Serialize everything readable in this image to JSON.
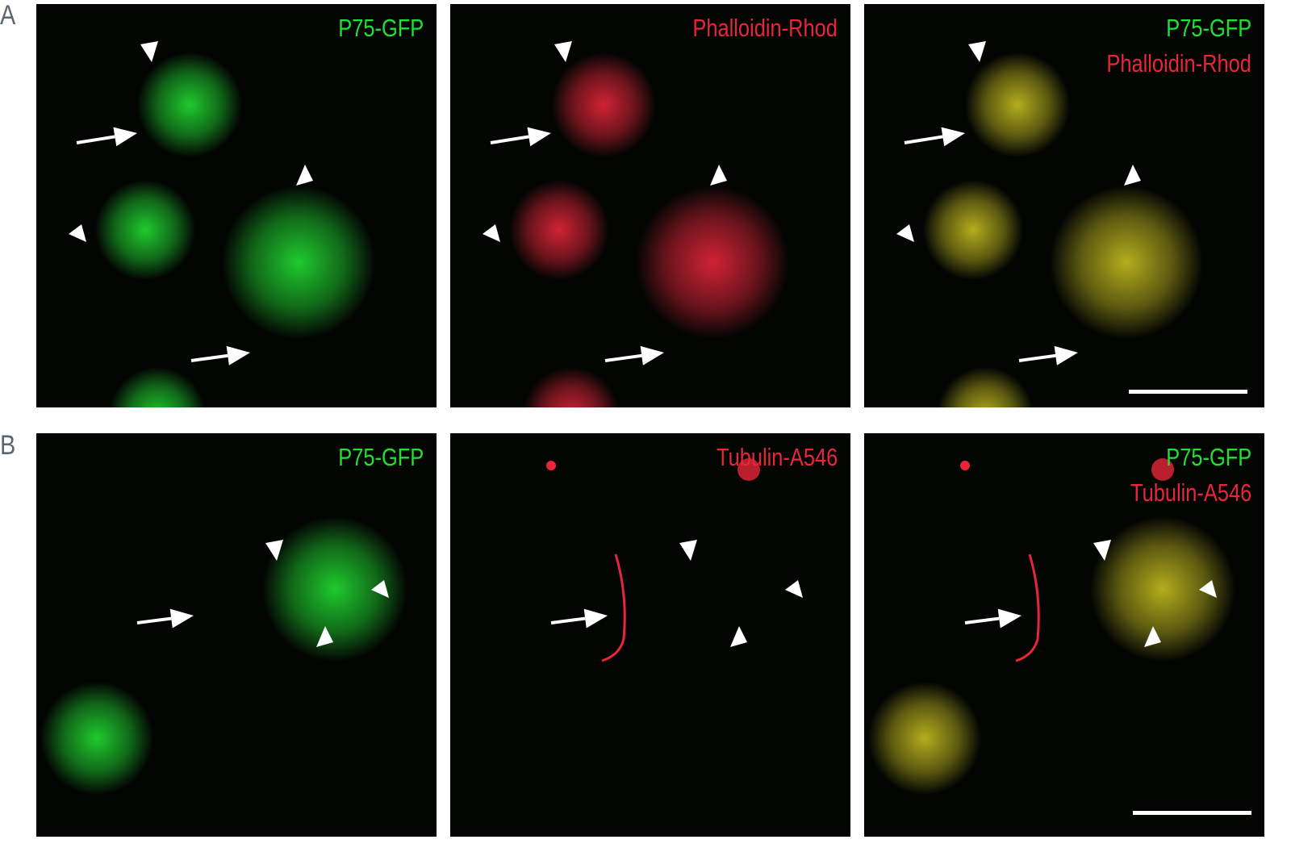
{
  "figure": {
    "rows": [
      {
        "label": "A",
        "panels": [
          {
            "channel": "green",
            "labels": [
              "P75-GFP"
            ]
          },
          {
            "channel": "red",
            "labels": [
              "Phalloidin-Rhod"
            ]
          },
          {
            "channel": "merge",
            "labels": [
              "P75-GFP",
              "Phalloidin-Rhod"
            ],
            "scale_bar": true
          }
        ]
      },
      {
        "label": "B",
        "panels": [
          {
            "channel": "green",
            "labels": [
              "P75-GFP"
            ]
          },
          {
            "channel": "red",
            "labels": [
              "Tubulin-A546"
            ]
          },
          {
            "channel": "merge",
            "labels": [
              "P75-GFP",
              "Tubulin-A546"
            ],
            "scale_bar": true
          }
        ]
      }
    ],
    "colors": {
      "green": "#22e033",
      "red": "#e8263a",
      "merge": "#c8c020",
      "background": "#030503"
    }
  }
}
